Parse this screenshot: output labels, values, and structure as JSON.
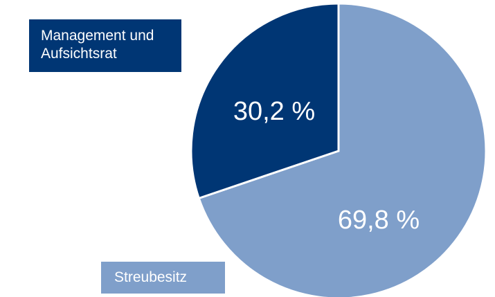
{
  "chart_data": {
    "type": "pie",
    "categories": [
      "Streubesitz",
      "Management und Aufsichtsrat"
    ],
    "values": [
      69.8,
      30.2
    ],
    "value_labels": [
      "69,8 %",
      "30,2 %"
    ],
    "colors": [
      "#7f9fca",
      "#003674"
    ]
  }
}
